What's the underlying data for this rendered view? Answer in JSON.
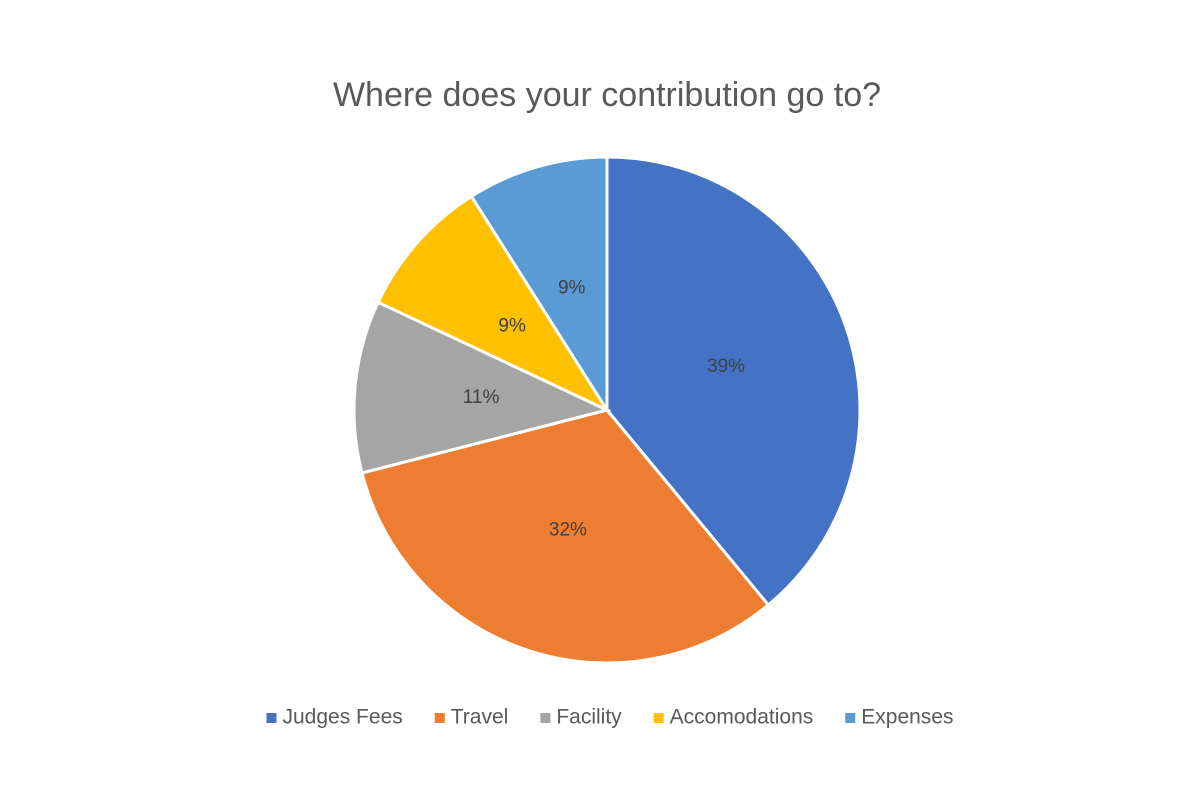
{
  "chart_data": {
    "type": "pie",
    "title": "Where does your contribution go to?",
    "categories": [
      "Judges Fees",
      "Travel",
      "Facility",
      "Accomodations",
      "Expenses"
    ],
    "values": [
      39,
      32,
      11,
      9,
      9
    ],
    "value_labels": [
      "39%",
      "32%",
      "11%",
      "9%",
      "9%"
    ],
    "colors": [
      "#4472c4",
      "#ed7d31",
      "#a5a5a5",
      "#ffc000",
      "#5b9bd5"
    ],
    "legend": "bottom"
  }
}
